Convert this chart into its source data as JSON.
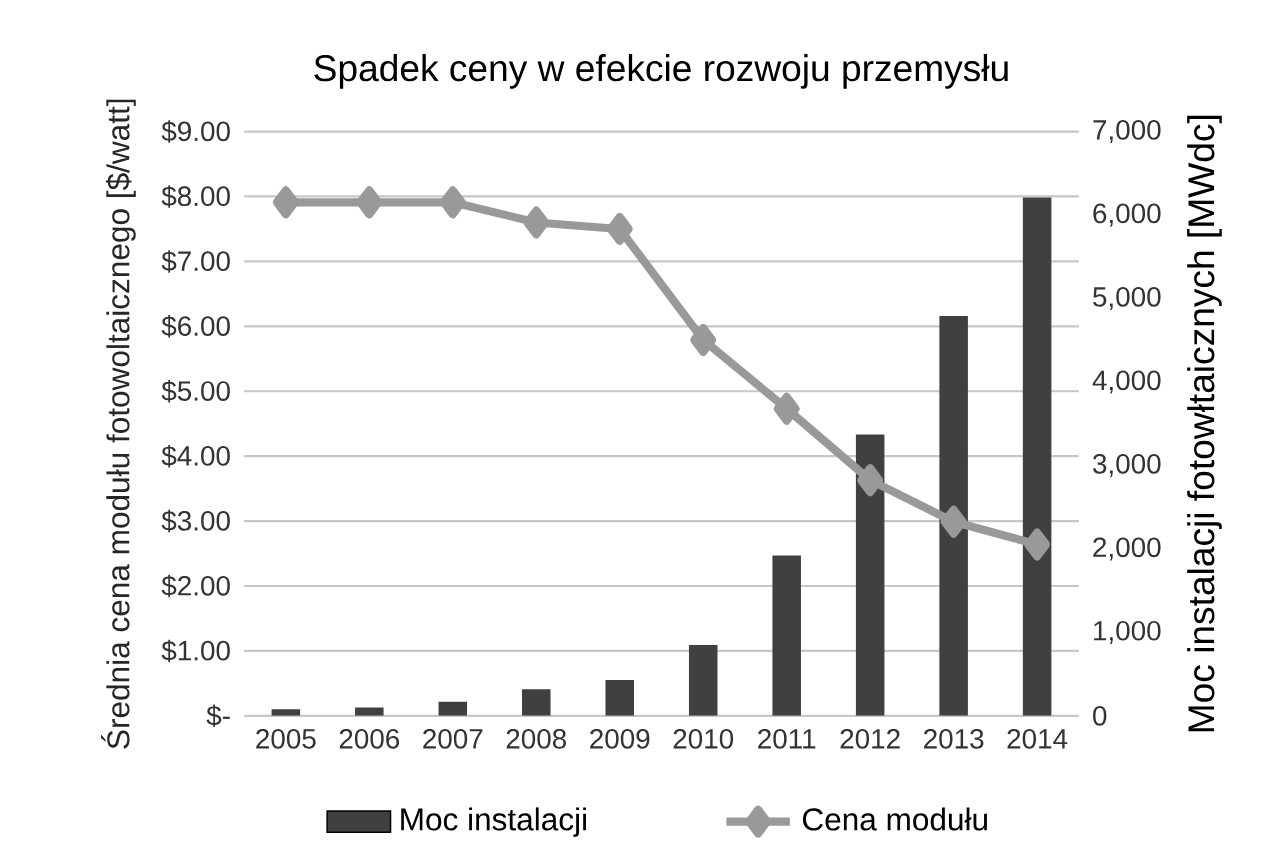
{
  "chart_data": {
    "type": "bar",
    "title": "Spadek ceny w efekcie rozwoju przemysłu",
    "ylabel": "Średnia cena modułu fotowoltaicznego [$/watt]",
    "y2label": "Moc instalacji fotowłtaicznych [MWdc]",
    "categories": [
      "2005",
      "2006",
      "2007",
      "2008",
      "2009",
      "2010",
      "2011",
      "2012",
      "2013",
      "2014"
    ],
    "series": [
      {
        "name": "Moc instalacji",
        "axis": "y2",
        "color": "#404040",
        "values": [
          80,
          100,
          170,
          320,
          430,
          850,
          1920,
          3370,
          4790,
          6210
        ]
      },
      {
        "name": "Cena modułu",
        "type": "line",
        "axis": "y",
        "color": "#999999",
        "marker": "diamond",
        "values": [
          7.91,
          7.91,
          7.91,
          7.6,
          7.5,
          5.79,
          4.73,
          3.63,
          2.99,
          2.64
        ]
      }
    ],
    "ylim": [
      0,
      9
    ],
    "yticks": [
      {
        "value": 0,
        "label": "$-"
      },
      {
        "value": 1,
        "label": "$1.00"
      },
      {
        "value": 2,
        "label": "$2.00"
      },
      {
        "value": 3,
        "label": "$3.00"
      },
      {
        "value": 4,
        "label": "$4.00"
      },
      {
        "value": 5,
        "label": "$5.00"
      },
      {
        "value": 6,
        "label": "$6.00"
      },
      {
        "value": 7,
        "label": "$7.00"
      },
      {
        "value": 8,
        "label": "$8.00"
      },
      {
        "value": 9,
        "label": "$9.00"
      }
    ],
    "y2lim": [
      0,
      7000
    ],
    "y2ticks": [
      0,
      {
        "value": 1000,
        "label": "1,000"
      },
      {
        "value": 2000,
        "label": "2,000"
      },
      {
        "value": 3000,
        "label": "3,000"
      },
      {
        "value": 4000,
        "label": "4,000"
      },
      {
        "value": 5000,
        "label": "5,000"
      },
      {
        "value": 6000,
        "label": "6,000"
      },
      {
        "value": 7000,
        "label": "7,000"
      }
    ],
    "grid": "y",
    "legend": "bottom"
  }
}
